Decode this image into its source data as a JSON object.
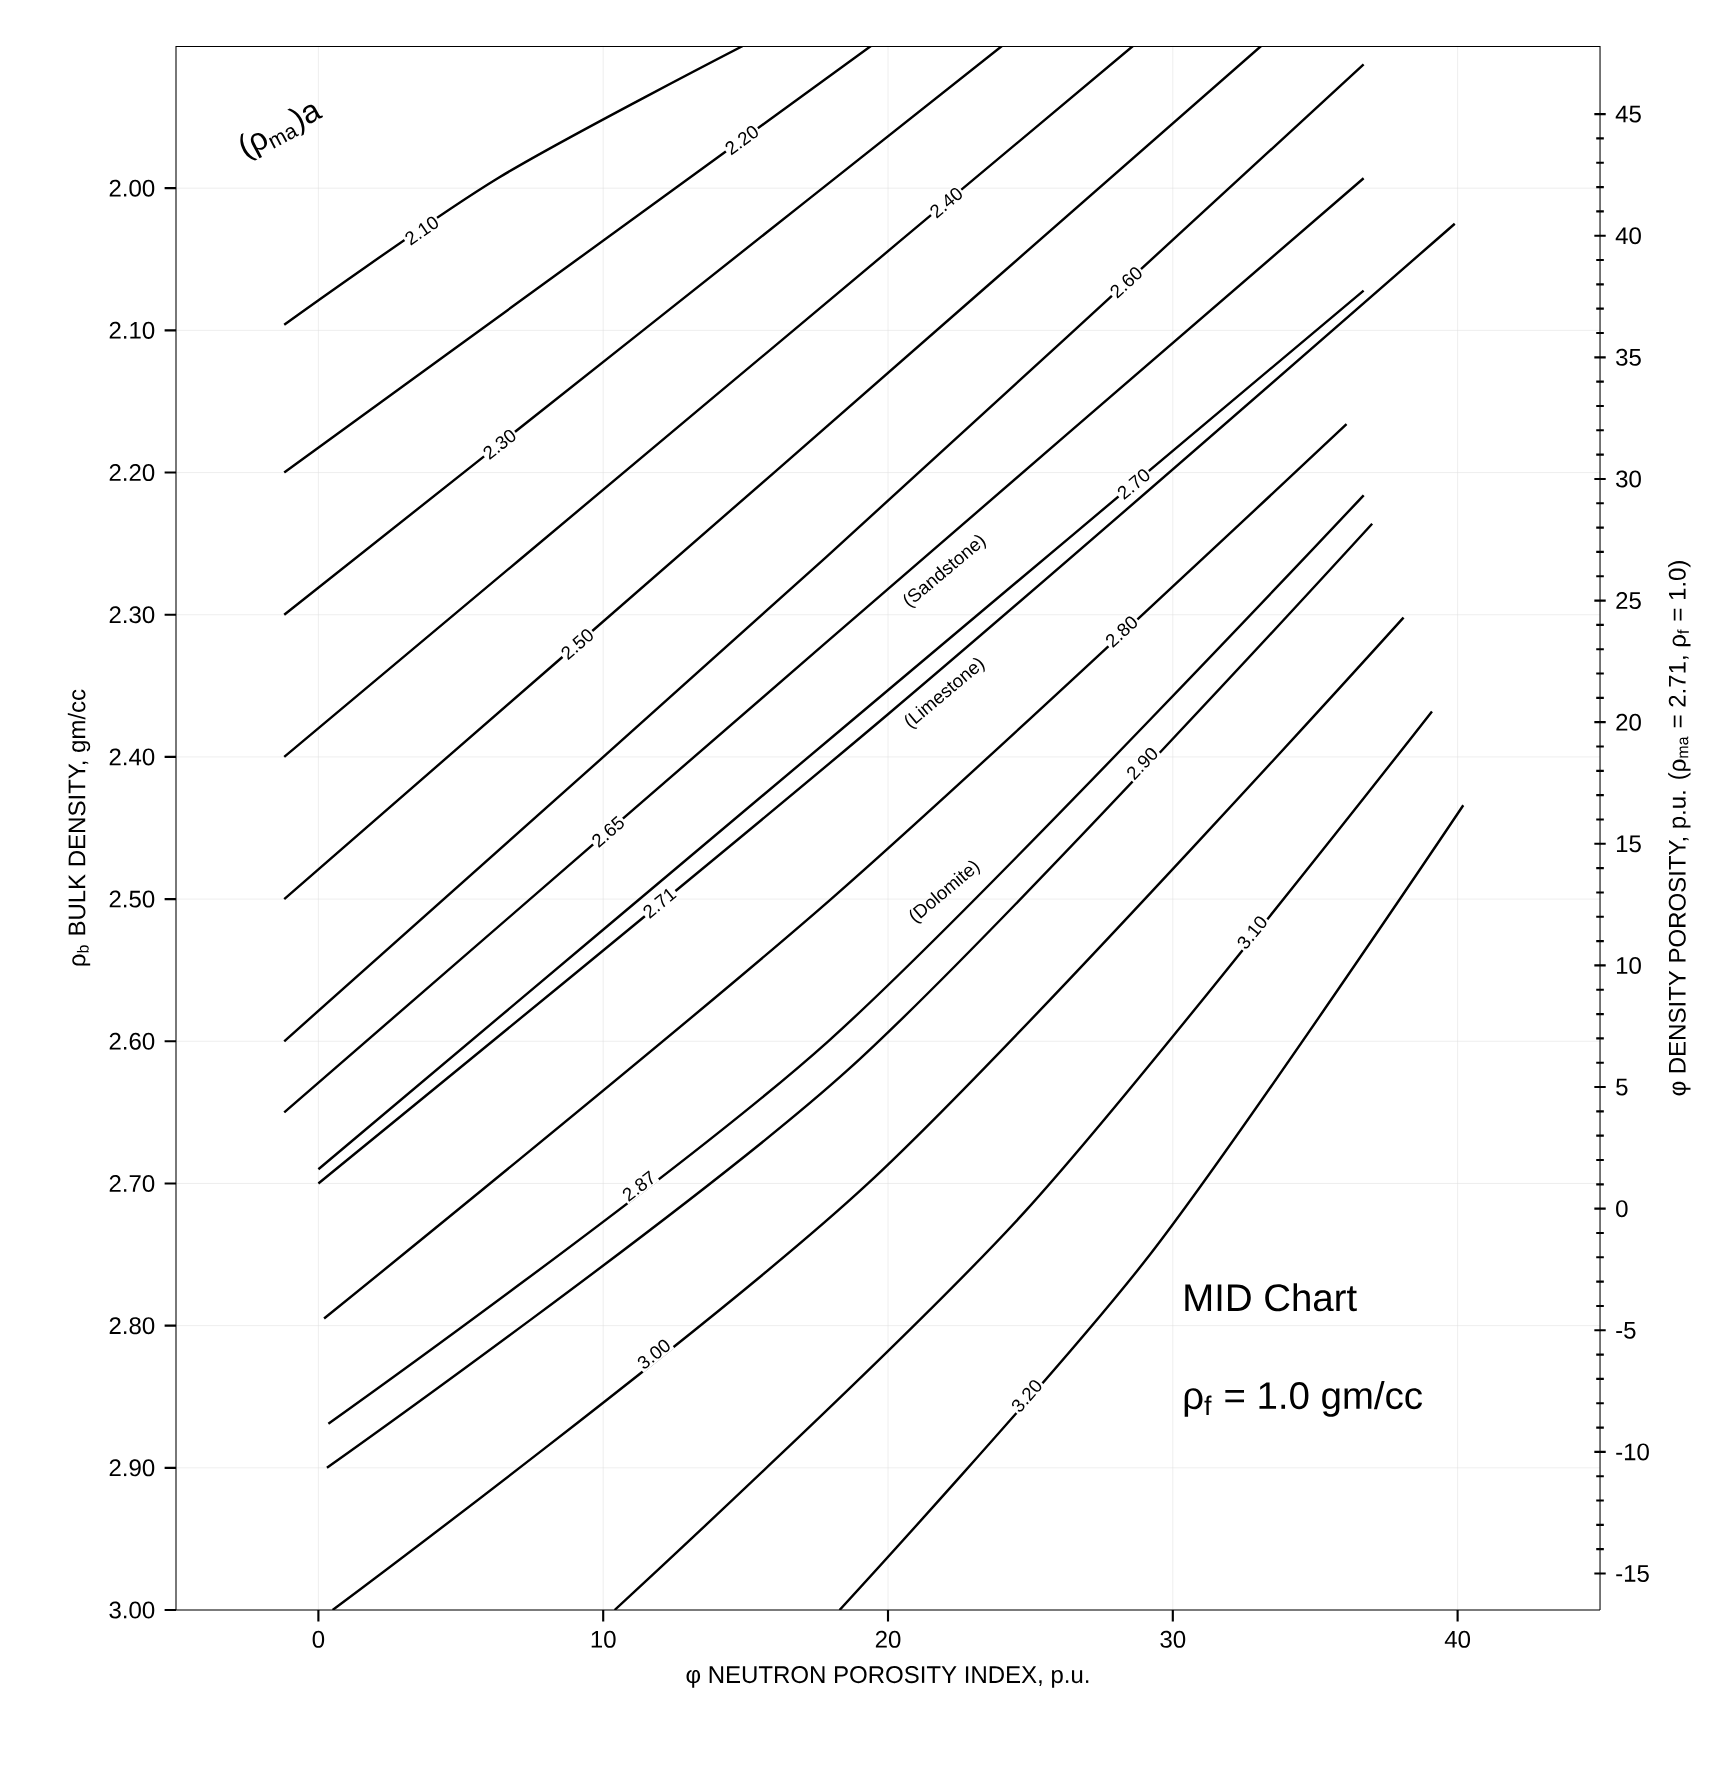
{
  "chart_data": {
    "type": "line",
    "xlabel": "φ NEUTRON POROSITY INDEX, p.u.",
    "ylabel": "ρ$_{b}$ BULK DENSITY, gm/cc",
    "y2label": "φ DENSITY POROSITY, p.u. (ρ$_{ma}$ = 2.71, ρ$_{f}$ = 1.0)",
    "xlim": [
      -5,
      45
    ],
    "xticks": [
      0,
      10,
      20,
      30,
      40
    ],
    "ylim": [
      3.0,
      1.9
    ],
    "yticks": [
      {
        "value": 2.0,
        "label": "2.00"
      },
      {
        "value": 2.1,
        "label": "2.10"
      },
      {
        "value": 2.2,
        "label": "2.20"
      },
      {
        "value": 2.3,
        "label": "2.30"
      },
      {
        "value": 2.4,
        "label": "2.40"
      },
      {
        "value": 2.5,
        "label": "2.50"
      },
      {
        "value": 2.6,
        "label": "2.60"
      },
      {
        "value": 2.7,
        "label": "2.70"
      },
      {
        "value": 2.8,
        "label": "2.80"
      },
      {
        "value": 2.9,
        "label": "2.90"
      },
      {
        "value": 3.0,
        "label": "3.00"
      }
    ],
    "y2lim": [
      -16.5,
      47.8
    ],
    "y2ticks": [
      -15,
      -10,
      -5,
      0,
      5,
      10,
      15,
      20,
      25,
      30,
      35,
      40,
      45
    ],
    "grid": true,
    "annotations": [
      "(ρ$_{ma}$)a",
      "MID Chart",
      "ρ$_{f}$ = 1.0 gm/cc",
      "(Sandstone)",
      "(Limestone)",
      "(Dolomite)"
    ],
    "series": [
      {
        "name": "2.10",
        "color": "#000000",
        "x": [
          -1.2,
          6.3,
          14.9
        ],
        "values": [
          2.096,
          1.993,
          1.9
        ]
      },
      {
        "name": "2.20",
        "color": "#000000",
        "x": [
          -1.2,
          9.1,
          19.4
        ],
        "values": [
          2.2,
          2.05,
          1.9
        ]
      },
      {
        "name": "2.30",
        "color": "#000000",
        "x": [
          -1.2,
          11.4,
          24.0
        ],
        "values": [
          2.3,
          2.1,
          1.9
        ]
      },
      {
        "name": "2.40",
        "color": "#000000",
        "x": [
          -1.2,
          13.7,
          28.6
        ],
        "values": [
          2.4,
          2.15,
          1.9
        ]
      },
      {
        "name": "2.50",
        "color": "#000000",
        "x": [
          -1.2,
          16.0,
          33.1
        ],
        "values": [
          2.5,
          2.2,
          1.9
        ]
      },
      {
        "name": "2.60",
        "color": "#000000",
        "x": [
          -1.2,
          17.8,
          36.7
        ],
        "values": [
          2.6,
          2.26,
          1.913
        ]
      },
      {
        "name": "2.65",
        "color": "#000000",
        "x": [
          -1.2,
          17.8,
          36.7
        ],
        "values": [
          2.65,
          2.32,
          1.993
        ]
      },
      {
        "name": "2.70",
        "color": "#000000",
        "x": [
          0,
          18.4,
          36.7
        ],
        "values": [
          2.69,
          2.38,
          2.072
        ]
      },
      {
        "name": "2.71",
        "color": "#000000",
        "x": [
          0,
          20,
          39.9
        ],
        "values": [
          2.7,
          2.37,
          2.025
        ]
      },
      {
        "name": "2.80",
        "color": "#000000",
        "x": [
          0.2,
          18,
          36.1
        ],
        "values": [
          2.795,
          2.5,
          2.166
        ]
      },
      {
        "name": "2.87",
        "color": "#000000",
        "x": [
          0.35,
          17.9,
          36.7
        ],
        "values": [
          2.869,
          2.6,
          2.216
        ]
      },
      {
        "name": "2.90",
        "color": "#000000",
        "x": [
          0.3,
          18.6,
          37.0
        ],
        "values": [
          2.9,
          2.62,
          2.236
        ]
      },
      {
        "name": "3.00",
        "color": "#000000",
        "x": [
          0.5,
          19.3,
          38.1
        ],
        "values": [
          3.0,
          2.7,
          2.302
        ]
      },
      {
        "name": "3.10",
        "color": "#000000",
        "x": [
          10.4,
          24.8,
          39.1
        ],
        "values": [
          3.0,
          2.72,
          2.368
        ]
      },
      {
        "name": "3.20",
        "color": "#000000",
        "x": [
          18.3,
          29.2,
          40.2
        ],
        "values": [
          3.0,
          2.75,
          2.434
        ]
      }
    ]
  }
}
